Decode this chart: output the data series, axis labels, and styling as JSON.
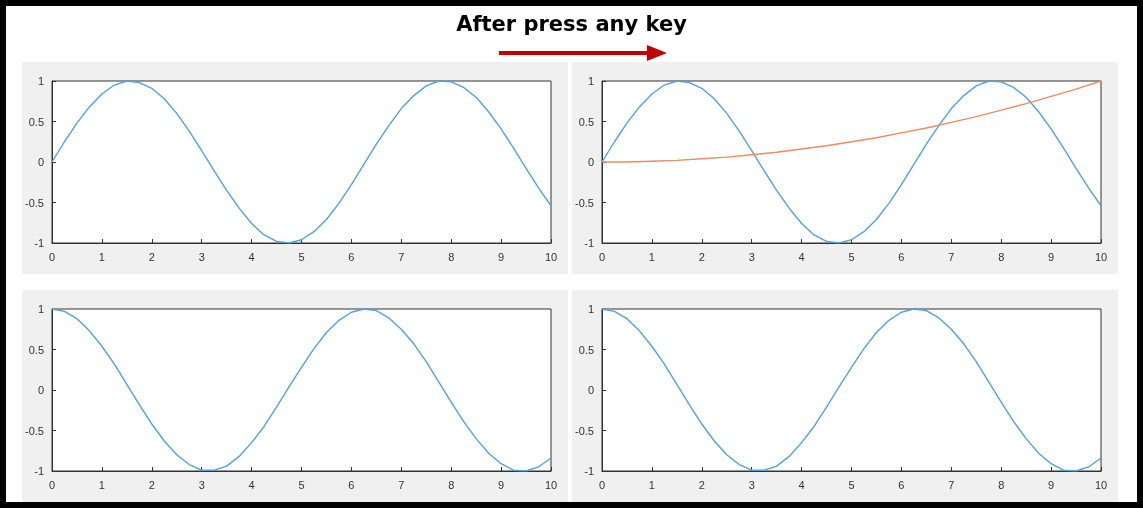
{
  "chart_data": [
    {
      "type": "line",
      "title": "After press any key",
      "x": [
        0,
        0.25,
        0.5,
        0.75,
        1,
        1.25,
        1.5,
        1.75,
        2,
        2.25,
        2.5,
        2.75,
        3,
        3.25,
        3.5,
        3.75,
        4,
        4.25,
        4.5,
        4.75,
        5,
        5.25,
        5.5,
        5.75,
        6,
        6.25,
        6.5,
        6.75,
        7,
        7.25,
        7.5,
        7.75,
        8,
        8.25,
        8.5,
        8.75,
        9,
        9.25,
        9.5,
        9.75,
        10
      ],
      "xlim": [
        0,
        10
      ],
      "xticks": [
        0,
        1,
        2,
        3,
        4,
        5,
        6,
        7,
        8,
        9,
        10
      ],
      "ylim": [
        -1,
        1
      ],
      "yticks": [
        -1,
        -0.5,
        0,
        0.5,
        1
      ],
      "grid": false,
      "marker": "none",
      "line_style": "solid",
      "series": [
        {
          "color": "#4ea3dc",
          "values": [
            0,
            0.25,
            0.48,
            0.68,
            0.84,
            0.95,
            1.0,
            0.98,
            0.91,
            0.78,
            0.6,
            0.38,
            0.14,
            -0.11,
            -0.35,
            -0.57,
            -0.76,
            -0.9,
            -0.98,
            -1.0,
            -0.96,
            -0.86,
            -0.71,
            -0.51,
            -0.28,
            -0.03,
            0.22,
            0.45,
            0.66,
            0.82,
            0.94,
            1.0,
            0.99,
            0.92,
            0.8,
            0.62,
            0.41,
            0.17,
            -0.08,
            -0.32,
            -0.54
          ]
        }
      ]
    },
    {
      "type": "line",
      "x": [
        0,
        0.25,
        0.5,
        0.75,
        1,
        1.25,
        1.5,
        1.75,
        2,
        2.25,
        2.5,
        2.75,
        3,
        3.25,
        3.5,
        3.75,
        4,
        4.25,
        4.5,
        4.75,
        5,
        5.25,
        5.5,
        5.75,
        6,
        6.25,
        6.5,
        6.75,
        7,
        7.25,
        7.5,
        7.75,
        8,
        8.25,
        8.5,
        8.75,
        9,
        9.25,
        9.5,
        9.75,
        10
      ],
      "xlim": [
        0,
        10
      ],
      "xticks": [
        0,
        1,
        2,
        3,
        4,
        5,
        6,
        7,
        8,
        9,
        10
      ],
      "ylim": [
        -1,
        1
      ],
      "yticks": [
        -1,
        -0.5,
        0,
        0.5,
        1
      ],
      "grid": false,
      "marker": "none",
      "line_style": "solid",
      "series": [
        {
          "color": "#4ea3dc",
          "values": [
            0,
            0.25,
            0.48,
            0.68,
            0.84,
            0.95,
            1.0,
            0.98,
            0.91,
            0.78,
            0.6,
            0.38,
            0.14,
            -0.11,
            -0.35,
            -0.57,
            -0.76,
            -0.9,
            -0.98,
            -1.0,
            -0.96,
            -0.86,
            -0.71,
            -0.51,
            -0.28,
            -0.03,
            0.22,
            0.45,
            0.66,
            0.82,
            0.94,
            1.0,
            0.99,
            0.92,
            0.8,
            0.62,
            0.41,
            0.17,
            -0.08,
            -0.32,
            -0.54
          ]
        },
        {
          "color": "#ef8a62",
          "x": [
            0,
            0.5,
            1,
            1.5,
            2,
            2.5,
            3,
            3.5,
            4,
            4.5,
            5,
            5.5,
            6,
            6.5,
            7,
            7.5,
            8,
            8.5,
            9,
            9.5,
            10
          ],
          "values": [
            0,
            0.0,
            0.01,
            0.02,
            0.04,
            0.06,
            0.09,
            0.12,
            0.16,
            0.2,
            0.25,
            0.3,
            0.36,
            0.42,
            0.49,
            0.56,
            0.64,
            0.72,
            0.81,
            0.9,
            1.0
          ]
        }
      ]
    },
    {
      "type": "line",
      "x": [
        0,
        0.25,
        0.5,
        0.75,
        1,
        1.25,
        1.5,
        1.75,
        2,
        2.25,
        2.5,
        2.75,
        3,
        3.25,
        3.5,
        3.75,
        4,
        4.25,
        4.5,
        4.75,
        5,
        5.25,
        5.5,
        5.75,
        6,
        6.25,
        6.5,
        6.75,
        7,
        7.25,
        7.5,
        7.75,
        8,
        8.25,
        8.5,
        8.75,
        9,
        9.25,
        9.5,
        9.75,
        10
      ],
      "xlim": [
        0,
        10
      ],
      "xticks": [
        0,
        1,
        2,
        3,
        4,
        5,
        6,
        7,
        8,
        9,
        10
      ],
      "ylim": [
        -1,
        1
      ],
      "yticks": [
        -1,
        -0.5,
        0,
        0.5,
        1
      ],
      "grid": false,
      "marker": "none",
      "line_style": "solid",
      "series": [
        {
          "color": "#4ea3dc",
          "values": [
            1,
            0.97,
            0.88,
            0.73,
            0.54,
            0.32,
            0.07,
            -0.18,
            -0.42,
            -0.63,
            -0.8,
            -0.92,
            -0.99,
            -0.99,
            -0.94,
            -0.82,
            -0.65,
            -0.45,
            -0.21,
            0.04,
            0.28,
            0.51,
            0.71,
            0.86,
            0.96,
            1.0,
            0.98,
            0.89,
            0.75,
            0.57,
            0.35,
            0.1,
            -0.15,
            -0.39,
            -0.6,
            -0.78,
            -0.91,
            -0.99,
            -1.0,
            -0.95,
            -0.84
          ]
        }
      ]
    },
    {
      "type": "line",
      "x": [
        0,
        0.25,
        0.5,
        0.75,
        1,
        1.25,
        1.5,
        1.75,
        2,
        2.25,
        2.5,
        2.75,
        3,
        3.25,
        3.5,
        3.75,
        4,
        4.25,
        4.5,
        4.75,
        5,
        5.25,
        5.5,
        5.75,
        6,
        6.25,
        6.5,
        6.75,
        7,
        7.25,
        7.5,
        7.75,
        8,
        8.25,
        8.5,
        8.75,
        9,
        9.25,
        9.5,
        9.75,
        10
      ],
      "xlim": [
        0,
        10
      ],
      "xticks": [
        0,
        1,
        2,
        3,
        4,
        5,
        6,
        7,
        8,
        9,
        10
      ],
      "ylim": [
        -1,
        1
      ],
      "yticks": [
        -1,
        -0.5,
        0,
        0.5,
        1
      ],
      "grid": false,
      "marker": "none",
      "line_style": "solid",
      "series": [
        {
          "color": "#4ea3dc",
          "values": [
            1,
            0.97,
            0.88,
            0.73,
            0.54,
            0.32,
            0.07,
            -0.18,
            -0.42,
            -0.63,
            -0.8,
            -0.92,
            -0.99,
            -0.99,
            -0.94,
            -0.82,
            -0.65,
            -0.45,
            -0.21,
            0.04,
            0.28,
            0.51,
            0.71,
            0.86,
            0.96,
            1.0,
            0.98,
            0.89,
            0.75,
            0.57,
            0.35,
            0.1,
            -0.15,
            -0.39,
            -0.6,
            -0.78,
            -0.91,
            -0.99,
            -1.0,
            -0.95,
            -0.84
          ]
        }
      ]
    }
  ]
}
